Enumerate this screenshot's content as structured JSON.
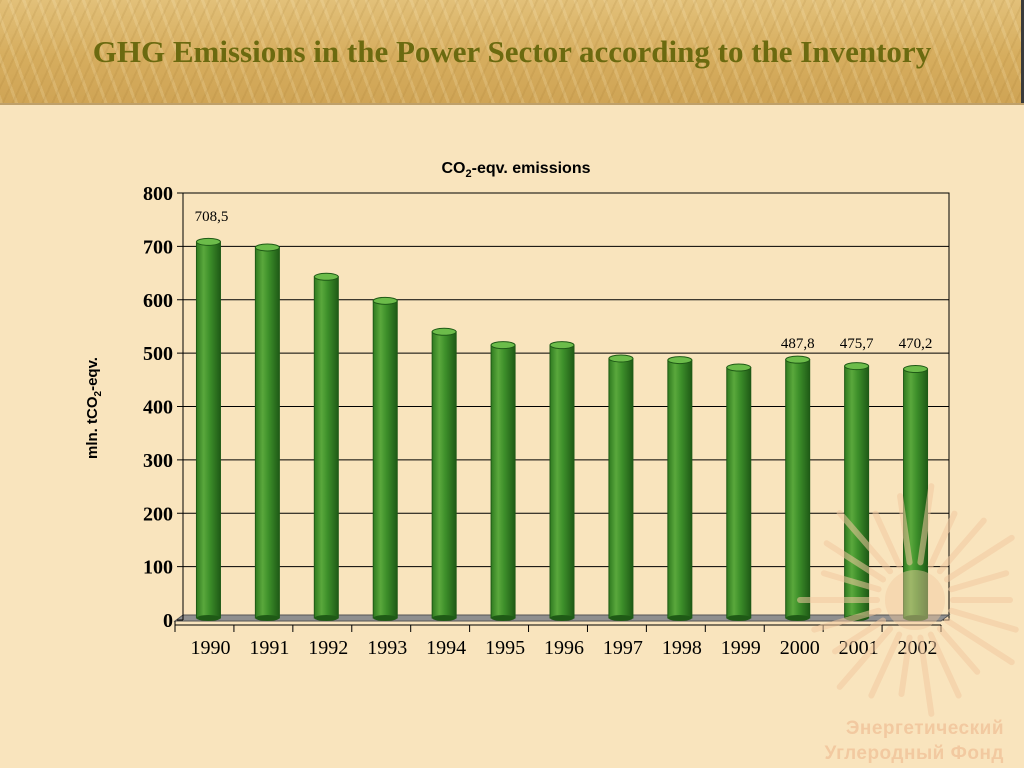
{
  "slide": {
    "title": "GHG Emissions in the Power Sector according to the Inventory"
  },
  "colors": {
    "bar_fill": "#3d8f2a",
    "bar_dark": "#1f5a16",
    "bar_light": "#6cbc4a",
    "background": "#f9e4bd",
    "title_color": "#6b6a10",
    "floor": "#8f8f8f",
    "watermark": "#f2c9a0"
  },
  "watermark": {
    "line1": "Энергетический",
    "line2": "Углеродный Фонд",
    "icon": "sun-logo-icon"
  },
  "chart_data": {
    "type": "bar",
    "title_main": "CO",
    "title_sub": "2",
    "title_rest": "-eqv. emissions",
    "ylabel_main": "mln. tCO",
    "ylabel_sub": "2",
    "ylabel_rest": "-eqv.",
    "xlabel": "",
    "ylim": [
      0,
      800
    ],
    "yticks": [
      0,
      100,
      200,
      300,
      400,
      500,
      600,
      700,
      800
    ],
    "grid": true,
    "categories": [
      "1990",
      "1991",
      "1992",
      "1993",
      "1994",
      "1995",
      "1996",
      "1997",
      "1998",
      "1999",
      "2000",
      "2001",
      "2002"
    ],
    "values": [
      708.5,
      698,
      643,
      598,
      540,
      515,
      515,
      490,
      487,
      473,
      487.8,
      475.7,
      470.2
    ],
    "data_labels": [
      {
        "index": 0,
        "text": "708,5"
      },
      {
        "index": 10,
        "text": "487,8"
      },
      {
        "index": 11,
        "text": "475,7"
      },
      {
        "index": 12,
        "text": "470,2"
      }
    ]
  }
}
